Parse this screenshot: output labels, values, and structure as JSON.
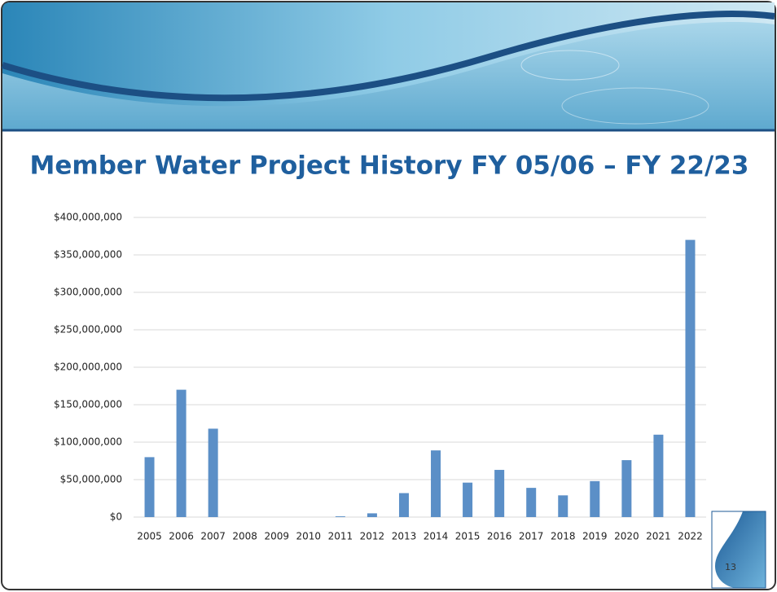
{
  "chart_data": {
    "type": "bar",
    "title": "Member Water Project History FY 05/06 – FY 22/23",
    "categories": [
      "2005",
      "2006",
      "2007",
      "2008",
      "2009",
      "2010",
      "2011",
      "2012",
      "2013",
      "2014",
      "2015",
      "2016",
      "2017",
      "2018",
      "2019",
      "2020",
      "2021",
      "2022"
    ],
    "values": [
      80000000,
      170000000,
      118000000,
      0,
      0,
      0,
      1000000,
      5000000,
      32000000,
      89000000,
      46000000,
      63000000,
      39000000,
      29000000,
      48000000,
      76000000,
      110000000,
      370000000
    ],
    "color": "#5b8fc7",
    "ylim": [
      0,
      400000000
    ],
    "yticks": [
      {
        "value": 0,
        "label": "$0"
      },
      {
        "value": 50000000,
        "label": "$50,000,000"
      },
      {
        "value": 100000000,
        "label": "$100,000,000"
      },
      {
        "value": 150000000,
        "label": "$150,000,000"
      },
      {
        "value": 200000000,
        "label": "$200,000,000"
      },
      {
        "value": 250000000,
        "label": "$250,000,000"
      },
      {
        "value": 300000000,
        "label": "$300,000,000"
      },
      {
        "value": 350000000,
        "label": "$350,000,000"
      },
      {
        "value": 400000000,
        "label": "$400,000,000"
      }
    ],
    "grid": true
  },
  "page_number": "13"
}
